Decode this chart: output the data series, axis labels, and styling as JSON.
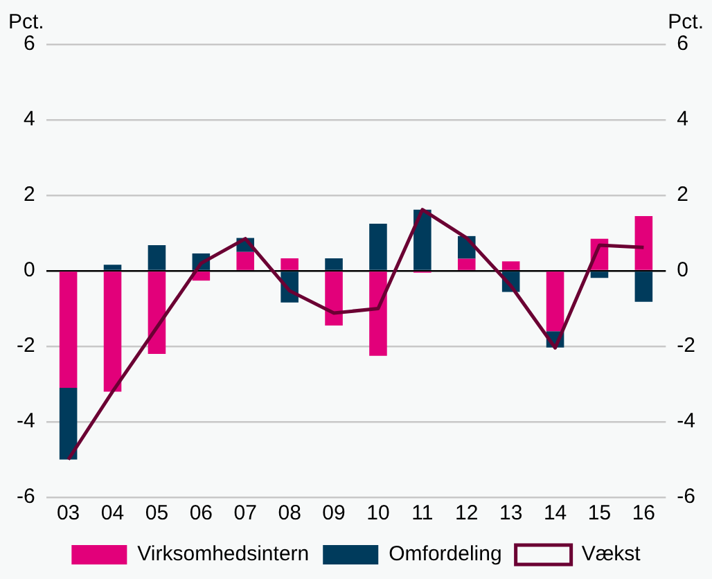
{
  "chart_data": {
    "type": "bar",
    "stacked": true,
    "ylabel": "Pct.",
    "y2label": "Pct.",
    "categories": [
      "03",
      "04",
      "05",
      "06",
      "07",
      "08",
      "09",
      "10",
      "11",
      "12",
      "13",
      "14",
      "15",
      "16"
    ],
    "series": [
      {
        "name": "Virksomhedsintern",
        "color": "#e2007a",
        "values": [
          -3.1,
          -3.2,
          -2.2,
          -0.26,
          0.5,
          0.33,
          -1.45,
          -2.25,
          -0.05,
          0.32,
          0.25,
          -1.6,
          0.85,
          1.45
        ]
      },
      {
        "name": "Omfordeling",
        "color": "#003b5c",
        "values": [
          -1.9,
          0.16,
          0.68,
          0.46,
          0.37,
          -0.84,
          0.33,
          1.25,
          1.62,
          0.6,
          -0.56,
          -0.43,
          -0.19,
          -0.82
        ]
      },
      {
        "name": "Vækst",
        "type": "line",
        "color": "#6b0033",
        "values": [
          -5.0,
          -3.2,
          -1.5,
          0.2,
          0.85,
          -0.53,
          -1.12,
          -1.0,
          1.62,
          0.87,
          -0.4,
          -2.04,
          0.68,
          0.62
        ]
      }
    ],
    "ylim": [
      -6,
      6
    ],
    "yticks": [
      -6,
      -4,
      -2,
      0,
      2,
      4,
      6
    ],
    "y2lim": [
      -6,
      6
    ],
    "y2ticks": [
      -6,
      -4,
      -2,
      0,
      2,
      4,
      6
    ],
    "grid": "y",
    "legend": "bottom"
  }
}
